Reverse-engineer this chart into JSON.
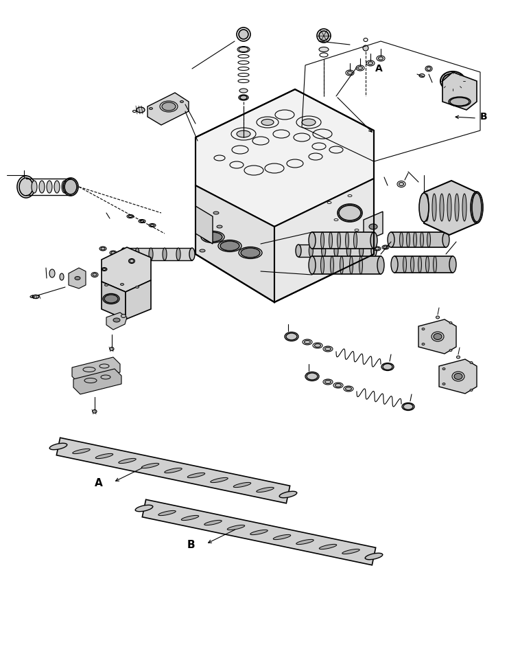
{
  "background_color": "#ffffff",
  "line_color": "#000000",
  "label_A": "A",
  "label_B": "B",
  "figsize": [
    7.58,
    9.58
  ],
  "dpi": 100
}
